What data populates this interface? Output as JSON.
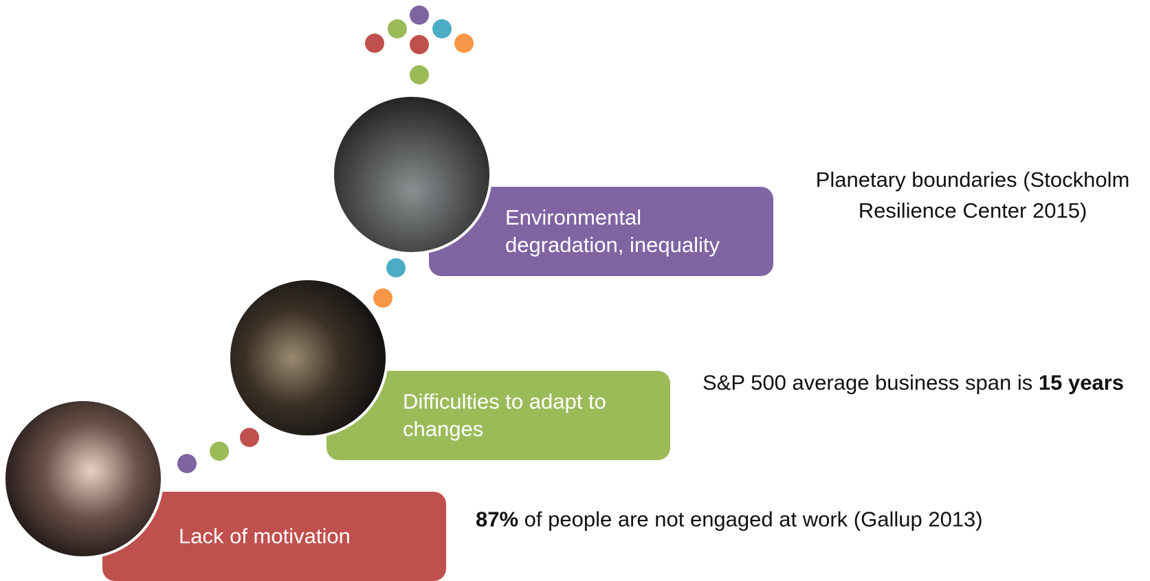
{
  "steps": [
    {
      "label": "Environmental degradation, inequality",
      "color": "#8064a2",
      "note": [
        {
          "text": "Planetary boundaries (Stockholm Resilience Center 2015)",
          "bold": false
        }
      ]
    },
    {
      "label": "Difficulties to adapt to changes",
      "color": "#9bbb59",
      "note": [
        {
          "text": "S&P 500 average business span is ",
          "bold": false
        },
        {
          "text": "15 years",
          "bold": true
        }
      ]
    },
    {
      "label": "Lack of motivation",
      "color": "#c0504d",
      "note": [
        {
          "text": "87%",
          "bold": true
        },
        {
          "text": " of people are not engaged at work (Gallup 2013)",
          "bold": false
        }
      ]
    }
  ]
}
